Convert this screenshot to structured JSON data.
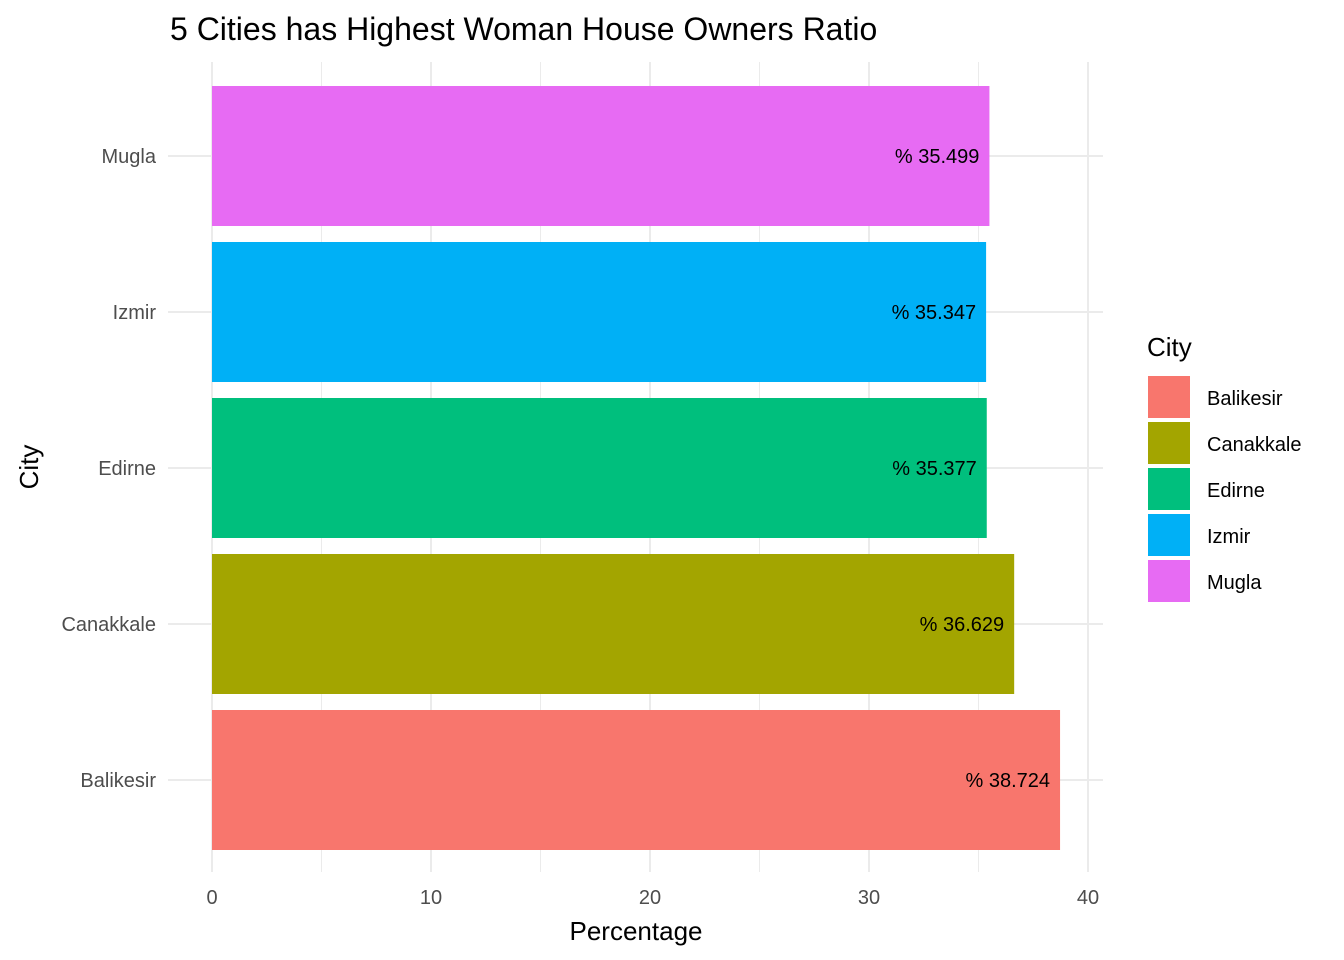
{
  "chart_data": {
    "type": "bar",
    "orientation": "horizontal",
    "title": "5 Cities has Highest Woman House Owners Ratio",
    "xlabel": "Percentage",
    "ylabel": "City",
    "xlim": [
      0,
      40
    ],
    "x_ticks": [
      0,
      10,
      20,
      30,
      40
    ],
    "grid": true,
    "legend_position": "right",
    "legend_title": "City",
    "categories": [
      "Balikesir",
      "Canakkale",
      "Edirne",
      "Izmir",
      "Mugla"
    ],
    "values": [
      38.724,
      36.629,
      35.377,
      35.347,
      35.499
    ],
    "data_labels": [
      "% 38.724",
      "% 36.629",
      "% 35.377",
      "% 35.347",
      "% 35.499"
    ],
    "colors": [
      "#F8766D",
      "#A3A500",
      "#00BF7D",
      "#00B0F6",
      "#E76BF3"
    ]
  }
}
